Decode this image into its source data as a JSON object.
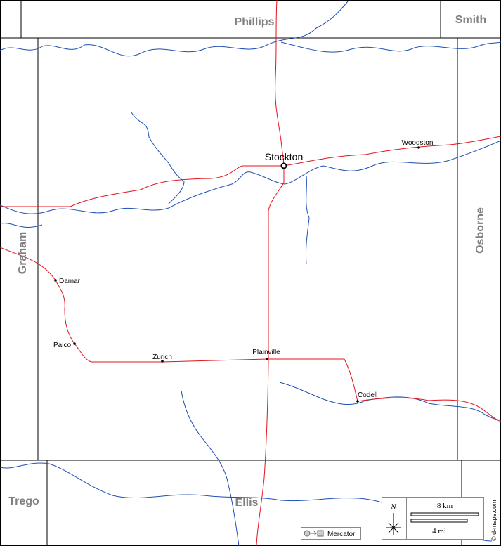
{
  "counties": [
    "Phillips",
    "Smith",
    "Graham",
    "Osborne",
    "Trego",
    "Ellis"
  ],
  "towns": [
    "Stockton",
    "Woodston",
    "Damar",
    "Palco",
    "Zurich",
    "Plainville",
    "Codell"
  ],
  "scale": {
    "north": "N",
    "km": "8 km",
    "mi": "4 mi"
  },
  "projection": "Mercator",
  "credit": "© d-maps.com"
}
